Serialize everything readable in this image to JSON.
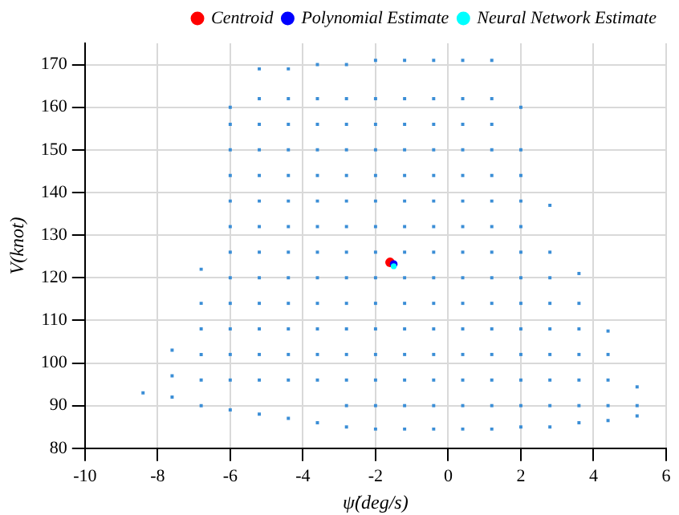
{
  "chart_data": {
    "type": "scatter",
    "xlabel": "ψ̇(deg/s)",
    "ylabel": "V(knot)",
    "xlim": [
      -10,
      6
    ],
    "xticks": [
      -10,
      -8,
      -6,
      -4,
      -2,
      0,
      2,
      4,
      6
    ],
    "ylim": [
      80,
      175
    ],
    "yticks": [
      80,
      90,
      100,
      110,
      120,
      130,
      140,
      150,
      160,
      170
    ],
    "grid": true,
    "legend": "top right",
    "marker": "square",
    "series": [
      {
        "color": "#3b8ed6",
        "x": [
          -8.4,
          -7.6,
          -7.6,
          -7.6,
          -6.8,
          -6.8,
          -6.8,
          -6.8,
          -6.8,
          -6.8,
          -6,
          -6,
          -6,
          -6,
          -6,
          -6,
          -6,
          -6,
          -6,
          -6,
          -6,
          -6,
          -6,
          -5.2,
          -5.2,
          -5.2,
          -5.2,
          -5.2,
          -5.2,
          -5.2,
          -5.2,
          -5.2,
          -5.2,
          -5.2,
          -5.2,
          -5.2,
          -5.2,
          -4.4,
          -4.4,
          -4.4,
          -4.4,
          -4.4,
          -4.4,
          -4.4,
          -4.4,
          -4.4,
          -4.4,
          -4.4,
          -4.4,
          -4.4,
          -4.4,
          -3.6,
          -3.6,
          -3.6,
          -3.6,
          -3.6,
          -3.6,
          -3.6,
          -3.6,
          -3.6,
          -3.6,
          -3.6,
          -3.6,
          -3.6,
          -3.6,
          -2.8,
          -2.8,
          -2.8,
          -2.8,
          -2.8,
          -2.8,
          -2.8,
          -2.8,
          -2.8,
          -2.8,
          -2.8,
          -2.8,
          -2.8,
          -2.8,
          -2.8,
          -2,
          -2,
          -2,
          -2,
          -2,
          -2,
          -2,
          -2,
          -2,
          -2,
          -2,
          -2,
          -2,
          -2,
          -2,
          -1.2,
          -1.2,
          -1.2,
          -1.2,
          -1.2,
          -1.2,
          -1.2,
          -1.2,
          -1.2,
          -1.2,
          -1.2,
          -1.2,
          -1.2,
          -1.2,
          -1.2,
          -0.4,
          -0.4,
          -0.4,
          -0.4,
          -0.4,
          -0.4,
          -0.4,
          -0.4,
          -0.4,
          -0.4,
          -0.4,
          -0.4,
          -0.4,
          -0.4,
          -0.4,
          0.4,
          0.4,
          0.4,
          0.4,
          0.4,
          0.4,
          0.4,
          0.4,
          0.4,
          0.4,
          0.4,
          0.4,
          0.4,
          0.4,
          0.4,
          1.2,
          1.2,
          1.2,
          1.2,
          1.2,
          1.2,
          1.2,
          1.2,
          1.2,
          1.2,
          1.2,
          1.2,
          1.2,
          1.2,
          1.2,
          2,
          2,
          2,
          2,
          2,
          2,
          2,
          2,
          2,
          2,
          2,
          2,
          2,
          2.8,
          2.8,
          2.8,
          2.8,
          2.8,
          2.8,
          2.8,
          2.8,
          2.8,
          3.6,
          3.6,
          3.6,
          3.6,
          3.6,
          3.6,
          3.6,
          4.4,
          4.4,
          4.4,
          4.4,
          4.4,
          5.2,
          5.2,
          5.2
        ],
        "values": [
          93,
          92,
          97,
          103,
          90,
          96,
          102,
          108,
          114,
          122,
          89,
          96,
          102,
          108,
          114,
          120,
          126,
          132,
          138,
          144,
          150,
          156,
          160,
          88,
          96,
          102,
          108,
          114,
          120,
          126,
          132,
          138,
          144,
          150,
          156,
          162,
          169,
          87,
          96,
          102,
          108,
          114,
          120,
          126,
          132,
          138,
          144,
          150,
          156,
          162,
          169,
          86,
          96,
          102,
          108,
          114,
          120,
          126,
          132,
          138,
          144,
          150,
          156,
          162,
          170,
          85,
          90,
          96,
          102,
          108,
          114,
          120,
          126,
          132,
          138,
          144,
          150,
          156,
          162,
          170,
          84.5,
          90,
          96,
          102,
          108,
          114,
          120,
          126,
          132,
          138,
          144,
          150,
          156,
          162,
          171,
          84.5,
          90,
          96,
          102,
          108,
          114,
          120,
          126,
          132,
          138,
          144,
          150,
          156,
          162,
          171,
          84.5,
          90,
          96,
          102,
          108,
          114,
          120,
          126,
          132,
          138,
          144,
          150,
          156,
          162,
          171,
          84.5,
          90,
          96,
          102,
          108,
          114,
          120,
          126,
          132,
          138,
          144,
          150,
          156,
          162,
          171,
          84.5,
          90,
          96,
          102,
          108,
          114,
          120,
          126,
          132,
          138,
          144,
          150,
          156,
          162,
          171,
          85,
          90,
          96,
          102,
          108,
          114,
          120,
          126,
          132,
          138,
          144,
          150,
          160,
          85,
          90,
          96,
          102,
          108,
          114,
          120,
          126,
          137,
          86,
          90,
          96,
          102,
          108,
          114,
          121,
          86.5,
          90,
          96,
          102,
          107.5,
          87.6,
          90,
          94.4
        ]
      },
      {
        "name": "Centroid",
        "color": "#ff0000",
        "marker": "circle",
        "x": [
          -1.6
        ],
        "values": [
          123.6
        ]
      },
      {
        "name": "Polynomial Estimate",
        "color": "#0000ff",
        "marker": "circle",
        "x": [
          -1.5
        ],
        "values": [
          123.2
        ]
      },
      {
        "name": "Neural Network Estimate",
        "color": "#00ffff",
        "marker": "circle",
        "x": [
          -1.5
        ],
        "values": [
          122.7
        ]
      }
    ]
  }
}
